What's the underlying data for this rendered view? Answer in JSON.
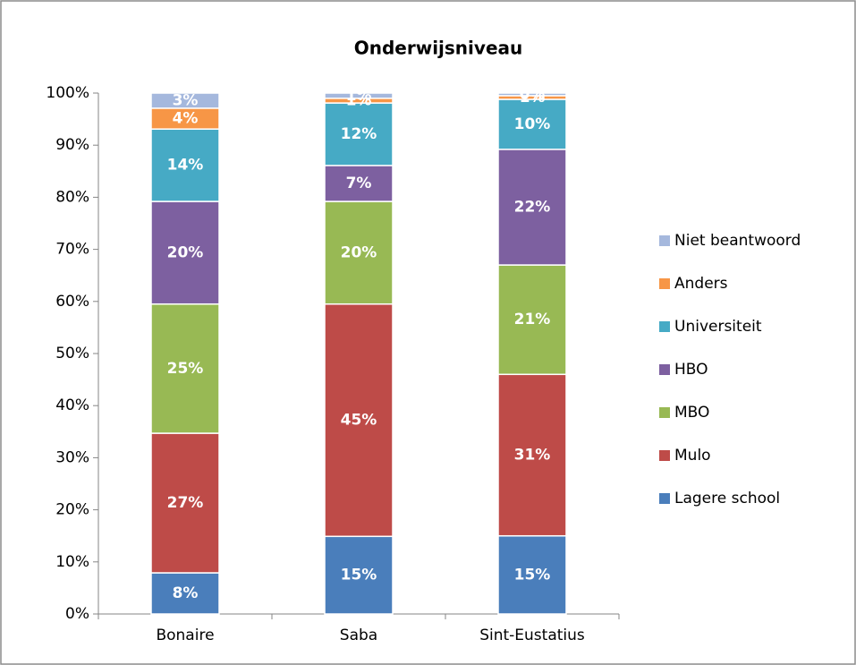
{
  "chart_data": {
    "type": "stacked_bar",
    "title": "Onderwijsniveau",
    "categories": [
      "Bonaire",
      "Saba",
      "Sint-Eustatius"
    ],
    "series": [
      {
        "name": "Lagere school",
        "color": "#4a7ebb",
        "values": [
          7.9,
          14.9,
          15.0
        ],
        "value_labels": [
          "8%",
          "15%",
          "15%"
        ]
      },
      {
        "name": "Mulo",
        "color": "#be4b48",
        "values": [
          26.8,
          44.6,
          31.0
        ],
        "value_labels": [
          "27%",
          "45%",
          "31%"
        ]
      },
      {
        "name": "MBO",
        "color": "#98b954",
        "values": [
          24.8,
          19.7,
          21.0
        ],
        "value_labels": [
          "25%",
          "20%",
          "21%"
        ]
      },
      {
        "name": "HBO",
        "color": "#7d60a0",
        "values": [
          19.7,
          6.9,
          22.2
        ],
        "value_labels": [
          "20%",
          "7%",
          "22%"
        ]
      },
      {
        "name": "Universiteit",
        "color": "#46aac5",
        "values": [
          13.9,
          12.0,
          9.6
        ],
        "value_labels": [
          "14%",
          "12%",
          "10%"
        ]
      },
      {
        "name": "Anders",
        "color": "#f79646",
        "values": [
          4.0,
          0.9,
          0.7
        ],
        "value_labels": [
          "4%",
          "1%",
          "1%"
        ]
      },
      {
        "name": "Niet beantwoord",
        "color": "#a5b8dd",
        "values": [
          2.9,
          1.0,
          0.5
        ],
        "value_labels": [
          "3%",
          "1%",
          "0%"
        ]
      }
    ],
    "ylim": [
      0,
      100
    ],
    "yticks": [
      {
        "value": 0,
        "label": "0%"
      },
      {
        "value": 10,
        "label": "10%"
      },
      {
        "value": 20,
        "label": "20%"
      },
      {
        "value": 30,
        "label": "30%"
      },
      {
        "value": 40,
        "label": "40%"
      },
      {
        "value": 50,
        "label": "50%"
      },
      {
        "value": 60,
        "label": "60%"
      },
      {
        "value": 70,
        "label": "70%"
      },
      {
        "value": 80,
        "label": "80%"
      },
      {
        "value": 90,
        "label": "90%"
      },
      {
        "value": 100,
        "label": "100%"
      }
    ],
    "legend": "right"
  }
}
